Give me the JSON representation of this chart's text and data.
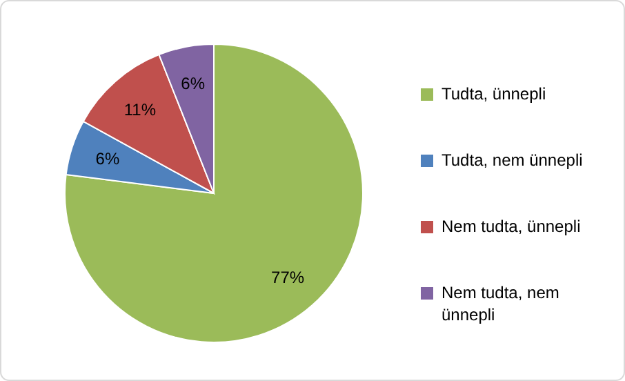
{
  "chart_data": {
    "type": "pie",
    "categories": [
      "Tudta, ünnepli",
      "Tudta, nem ünnepli",
      "Nem tudta, ünnepli",
      "Nem tudta, nem ünnepli"
    ],
    "values": [
      77,
      6,
      11,
      6
    ],
    "colors": [
      "#9bbb59",
      "#4f81bd",
      "#c0504d",
      "#8064a2"
    ],
    "value_labels": [
      "77%",
      "6%",
      "11%",
      "6%"
    ],
    "legend": "right"
  }
}
